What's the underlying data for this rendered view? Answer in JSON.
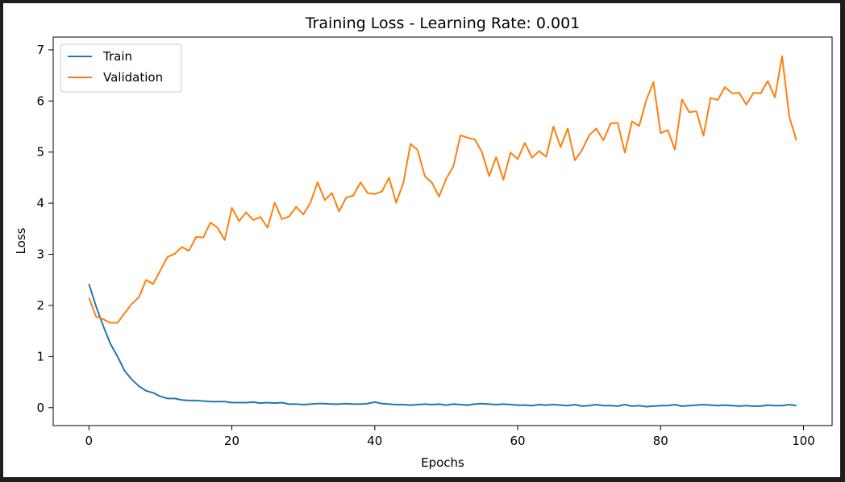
{
  "chart_data": {
    "type": "line",
    "title": "Training Loss - Learning Rate: 0.001",
    "xlabel": "Epochs",
    "ylabel": "Loss",
    "xlim": [
      -5,
      104
    ],
    "ylim": [
      -0.35,
      7.25
    ],
    "xticks": [
      "0",
      "20",
      "40",
      "60",
      "80",
      "100"
    ],
    "yticks": [
      "0",
      "1",
      "2",
      "3",
      "4",
      "5",
      "6",
      "7"
    ],
    "grid": false,
    "legend_position": "top-left",
    "series": [
      {
        "name": "Train",
        "color": "#1f77b4",
        "values": [
          2.42,
          1.98,
          1.6,
          1.25,
          1.0,
          0.72,
          0.55,
          0.42,
          0.33,
          0.29,
          0.22,
          0.18,
          0.18,
          0.15,
          0.14,
          0.14,
          0.13,
          0.12,
          0.12,
          0.12,
          0.1,
          0.1,
          0.1,
          0.11,
          0.09,
          0.1,
          0.09,
          0.1,
          0.07,
          0.07,
          0.06,
          0.07,
          0.08,
          0.08,
          0.07,
          0.07,
          0.08,
          0.07,
          0.07,
          0.08,
          0.11,
          0.08,
          0.07,
          0.06,
          0.06,
          0.05,
          0.06,
          0.07,
          0.06,
          0.07,
          0.05,
          0.07,
          0.06,
          0.05,
          0.07,
          0.08,
          0.07,
          0.06,
          0.07,
          0.06,
          0.05,
          0.05,
          0.04,
          0.06,
          0.05,
          0.06,
          0.05,
          0.04,
          0.06,
          0.03,
          0.04,
          0.06,
          0.04,
          0.04,
          0.03,
          0.06,
          0.03,
          0.04,
          0.02,
          0.03,
          0.04,
          0.04,
          0.06,
          0.03,
          0.04,
          0.05,
          0.06,
          0.05,
          0.04,
          0.05,
          0.04,
          0.03,
          0.04,
          0.03,
          0.03,
          0.05,
          0.04,
          0.04,
          0.06,
          0.04
        ]
      },
      {
        "name": "Validation",
        "color": "#ff7f0e",
        "values": [
          2.15,
          1.78,
          1.73,
          1.66,
          1.66,
          1.85,
          2.03,
          2.16,
          2.5,
          2.42,
          2.69,
          2.95,
          3.01,
          3.14,
          3.07,
          3.34,
          3.33,
          3.62,
          3.52,
          3.28,
          3.91,
          3.65,
          3.82,
          3.67,
          3.73,
          3.52,
          4.01,
          3.69,
          3.74,
          3.93,
          3.78,
          4.01,
          4.41,
          4.06,
          4.2,
          3.84,
          4.11,
          4.15,
          4.41,
          4.2,
          4.18,
          4.23,
          4.5,
          4.01,
          4.4,
          5.16,
          5.04,
          4.53,
          4.4,
          4.13,
          4.48,
          4.72,
          5.33,
          5.28,
          5.25,
          5.0,
          4.53,
          4.9,
          4.46,
          4.99,
          4.86,
          5.18,
          4.89,
          5.02,
          4.91,
          5.5,
          5.1,
          5.46,
          4.84,
          5.04,
          5.33,
          5.46,
          5.23,
          5.56,
          5.57,
          4.99,
          5.6,
          5.51,
          6.02,
          6.37,
          5.37,
          5.43,
          5.05,
          6.03,
          5.78,
          5.8,
          5.32,
          6.06,
          6.02,
          6.27,
          6.15,
          6.16,
          5.93,
          6.16,
          6.15,
          6.39,
          6.07,
          6.88,
          5.7,
          5.23
        ]
      }
    ]
  }
}
